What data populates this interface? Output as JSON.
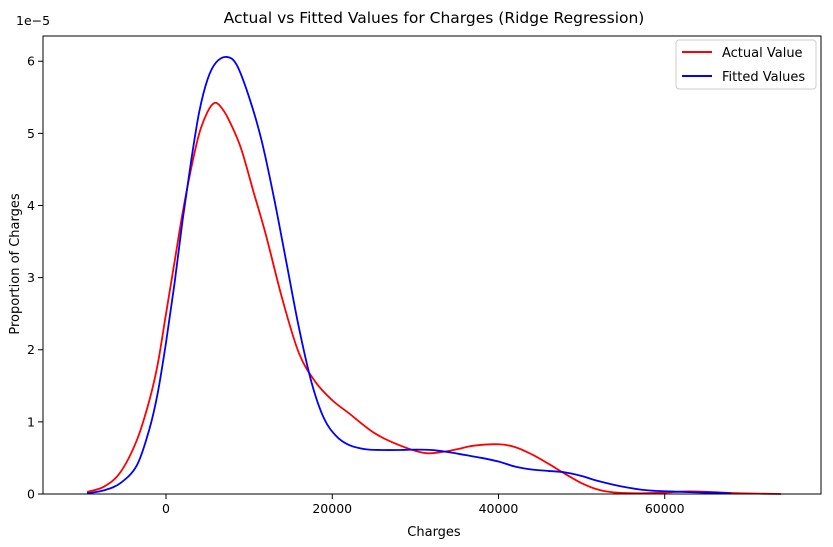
{
  "chart_data": {
    "type": "line",
    "title": "Actual vs Fitted Values for Charges (Ridge Regression)",
    "xlabel": "Charges",
    "ylabel": "Proportion of Charges",
    "y_scale_label": "1e−5",
    "xlim": [
      -14800,
      78800
    ],
    "ylim": [
      0,
      6.35
    ],
    "xticks": [
      0,
      20000,
      40000,
      60000
    ],
    "xtick_labels": [
      "0",
      "20000",
      "40000",
      "60000"
    ],
    "yticks": [
      0,
      1,
      2,
      3,
      4,
      5,
      6
    ],
    "ytick_labels": [
      "0",
      "1",
      "2",
      "3",
      "4",
      "5",
      "6"
    ],
    "grid": false,
    "legend_position": "top-right",
    "colors": {
      "actual": "#ff0000",
      "fitted": "#0000ff"
    },
    "series": [
      {
        "name": "Actual Value",
        "color": "#ff0000",
        "points": [
          [
            -9500,
            0.03
          ],
          [
            -7500,
            0.1
          ],
          [
            -5500,
            0.3
          ],
          [
            -3500,
            0.75
          ],
          [
            -2000,
            1.3
          ],
          [
            -1000,
            1.8
          ],
          [
            0,
            2.5
          ],
          [
            1000,
            3.2
          ],
          [
            2000,
            3.9
          ],
          [
            3000,
            4.5
          ],
          [
            4000,
            5.0
          ],
          [
            5000,
            5.3
          ],
          [
            5800,
            5.42
          ],
          [
            6500,
            5.38
          ],
          [
            7500,
            5.2
          ],
          [
            9000,
            4.8
          ],
          [
            10500,
            4.2
          ],
          [
            12000,
            3.6
          ],
          [
            14000,
            2.7
          ],
          [
            16000,
            1.95
          ],
          [
            18000,
            1.55
          ],
          [
            20000,
            1.3
          ],
          [
            22000,
            1.12
          ],
          [
            25000,
            0.85
          ],
          [
            28000,
            0.68
          ],
          [
            31000,
            0.57
          ],
          [
            33000,
            0.58
          ],
          [
            35000,
            0.62
          ],
          [
            37000,
            0.67
          ],
          [
            40000,
            0.69
          ],
          [
            42000,
            0.65
          ],
          [
            44000,
            0.55
          ],
          [
            46000,
            0.42
          ],
          [
            48000,
            0.28
          ],
          [
            50000,
            0.15
          ],
          [
            52000,
            0.06
          ],
          [
            54000,
            0.02
          ],
          [
            57000,
            0.01
          ],
          [
            60000,
            0.02
          ],
          [
            62000,
            0.035
          ],
          [
            64000,
            0.035
          ],
          [
            66000,
            0.025
          ],
          [
            69000,
            0.01
          ],
          [
            74000,
            0.0
          ]
        ]
      },
      {
        "name": "Fitted Values",
        "color": "#0000ff",
        "points": [
          [
            -9500,
            0.01
          ],
          [
            -7500,
            0.05
          ],
          [
            -5500,
            0.15
          ],
          [
            -3500,
            0.4
          ],
          [
            -2000,
            0.9
          ],
          [
            -1000,
            1.4
          ],
          [
            0,
            2.1
          ],
          [
            1000,
            2.9
          ],
          [
            2000,
            3.8
          ],
          [
            3000,
            4.6
          ],
          [
            4000,
            5.3
          ],
          [
            5000,
            5.75
          ],
          [
            6000,
            5.98
          ],
          [
            7300,
            6.06
          ],
          [
            8500,
            5.95
          ],
          [
            10000,
            5.5
          ],
          [
            11500,
            4.9
          ],
          [
            13000,
            4.1
          ],
          [
            14500,
            3.2
          ],
          [
            16000,
            2.3
          ],
          [
            17500,
            1.55
          ],
          [
            19000,
            1.05
          ],
          [
            20500,
            0.8
          ],
          [
            22000,
            0.68
          ],
          [
            24000,
            0.62
          ],
          [
            26000,
            0.61
          ],
          [
            28000,
            0.61
          ],
          [
            30000,
            0.615
          ],
          [
            32000,
            0.61
          ],
          [
            34000,
            0.58
          ],
          [
            36000,
            0.54
          ],
          [
            38000,
            0.5
          ],
          [
            40000,
            0.45
          ],
          [
            42000,
            0.38
          ],
          [
            44000,
            0.34
          ],
          [
            46000,
            0.32
          ],
          [
            48000,
            0.3
          ],
          [
            50000,
            0.25
          ],
          [
            52000,
            0.18
          ],
          [
            55000,
            0.1
          ],
          [
            58000,
            0.05
          ],
          [
            62000,
            0.03
          ],
          [
            65000,
            0.02
          ],
          [
            68000,
            0.01
          ]
        ]
      }
    ]
  }
}
